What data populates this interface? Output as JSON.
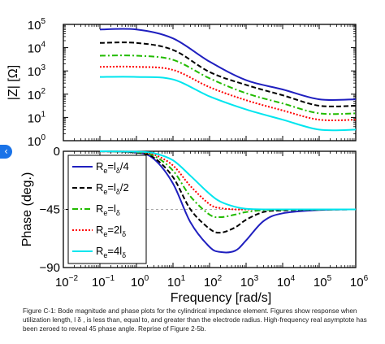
{
  "nav": {
    "prev_glyph": "‹",
    "icon": "chevron-left-icon",
    "color": "#1a73e8"
  },
  "caption": "Figure C-1: Bode magnitude and phase plots for the cylindrical impedance element. Figures show response when utilization length, l δ , is less than, equal to, and greater than the electrode radius. High-frequency real asymptote has been zeroed to reveal 45 phase angle. Reprise of Figure 2-5b.",
  "chart_data": [
    {
      "type": "line",
      "panel": "magnitude",
      "title": "",
      "xlabel": "",
      "ylabel": "|Z| [Ω]",
      "x_scale": "log",
      "y_scale": "log",
      "xlim": [
        0.01,
        1000000
      ],
      "ylim": [
        1,
        100000
      ],
      "x": [
        0.1,
        1,
        10,
        100,
        1000,
        10000,
        100000,
        1000000
      ],
      "series": [
        {
          "name": "R_e = l_δ/4",
          "style": "solid",
          "color": "#1f1fbf",
          "values": [
            60000,
            60000,
            25000,
            2500,
            400,
            160,
            60,
            60
          ]
        },
        {
          "name": "R_e = l_δ/2",
          "style": "dashed",
          "color": "#000000",
          "values": [
            16000,
            16000,
            8000,
            900,
            250,
            90,
            32,
            32
          ]
        },
        {
          "name": "R_e = l_δ",
          "style": "dashdot",
          "color": "#22bb00",
          "values": [
            4500,
            4500,
            3000,
            480,
            110,
            40,
            15,
            15
          ]
        },
        {
          "name": "R_e = 2l_δ",
          "style": "dotted",
          "color": "#ff0000",
          "values": [
            1500,
            1500,
            1100,
            200,
            55,
            20,
            8,
            8
          ]
        },
        {
          "name": "R_e = 4l_δ",
          "style": "solid",
          "color": "#00e5ee",
          "values": [
            550,
            550,
            430,
            80,
            22,
            8,
            3,
            3
          ]
        }
      ],
      "ytick_labels": [
        {
          "base": "10",
          "exp": "0",
          "value": 1
        },
        {
          "base": "10",
          "exp": "1",
          "value": 10
        },
        {
          "base": "10",
          "exp": "2",
          "value": 100
        },
        {
          "base": "10",
          "exp": "3",
          "value": 1000
        },
        {
          "base": "10",
          "exp": "4",
          "value": 10000
        },
        {
          "base": "10",
          "exp": "5",
          "value": 100000
        }
      ]
    },
    {
      "type": "line",
      "panel": "phase",
      "title": "",
      "xlabel": "Frequency [rad/s]",
      "ylabel": "Phase (deg.)",
      "x_scale": "log",
      "xlim": [
        0.01,
        1000000
      ],
      "ylim": [
        -90,
        0
      ],
      "x": [
        0.1,
        1,
        3,
        10,
        30,
        100,
        200,
        500,
        1000,
        3000,
        10000,
        100000,
        1000000
      ],
      "series": [
        {
          "name": "R_e = l_δ/4",
          "style": "solid",
          "color": "#1f1fbf",
          "values": [
            0,
            -1,
            -6,
            -25,
            -55,
            -74,
            -78,
            -77,
            -69,
            -54,
            -48,
            -45.5,
            -45
          ]
        },
        {
          "name": "R_e = l_δ/2",
          "style": "dashed",
          "color": "#000000",
          "values": [
            0,
            -1,
            -5,
            -20,
            -45,
            -60,
            -63,
            -59,
            -53,
            -47,
            -45.8,
            -45.2,
            -45
          ]
        },
        {
          "name": "R_e = l_δ",
          "style": "dashdot",
          "color": "#22bb00",
          "values": [
            0,
            -0.7,
            -3.5,
            -15,
            -35,
            -49,
            -51,
            -49,
            -47,
            -45.6,
            -45.3,
            -45.1,
            -45
          ]
        },
        {
          "name": "R_e = 2l_δ",
          "style": "dotted",
          "color": "#ff0000",
          "values": [
            0,
            -0.5,
            -2.5,
            -11,
            -27,
            -41,
            -44,
            -45,
            -45,
            -45,
            -45,
            -45,
            -45
          ]
        },
        {
          "name": "R_e = 4l_δ",
          "style": "solid",
          "color": "#00e5ee",
          "values": [
            0,
            -0.3,
            -1.5,
            -7,
            -19,
            -33,
            -39,
            -43,
            -44.5,
            -45,
            -45,
            -45,
            -45
          ]
        }
      ],
      "asymptote": {
        "y": -45,
        "style": "dashed",
        "color": "#aaaaaa"
      },
      "ytick_labels": [
        {
          "text": "0",
          "value": 0
        },
        {
          "text": "−45",
          "value": -45
        },
        {
          "text": "−90",
          "value": -90
        }
      ],
      "xtick_labels": [
        {
          "base": "10",
          "exp": "−2",
          "value": 0.01
        },
        {
          "base": "10",
          "exp": "−1",
          "value": 0.1
        },
        {
          "base": "10",
          "exp": "0",
          "value": 1
        },
        {
          "base": "10",
          "exp": "1",
          "value": 10
        },
        {
          "base": "10",
          "exp": "2",
          "value": 100
        },
        {
          "base": "10",
          "exp": "3",
          "value": 1000
        },
        {
          "base": "10",
          "exp": "4",
          "value": 10000
        },
        {
          "base": "10",
          "exp": "5",
          "value": 100000
        },
        {
          "base": "10",
          "exp": "6",
          "value": 1000000
        }
      ],
      "legend": {
        "placement": "upper-left",
        "entries": [
          {
            "main": "R",
            "sub1": "e",
            "eq": "=l",
            "sub2": "δ",
            "tail": "/4"
          },
          {
            "main": "R",
            "sub1": "e",
            "eq": "=l",
            "sub2": "δ",
            "tail": "/2"
          },
          {
            "main": "R",
            "sub1": "e",
            "eq": "=l",
            "sub2": "δ",
            "tail": ""
          },
          {
            "main": "R",
            "sub1": "e",
            "eq": "=2l",
            "sub2": "δ",
            "tail": ""
          },
          {
            "main": "R",
            "sub1": "e",
            "eq": "=4l",
            "sub2": "δ",
            "tail": ""
          }
        ]
      }
    }
  ]
}
